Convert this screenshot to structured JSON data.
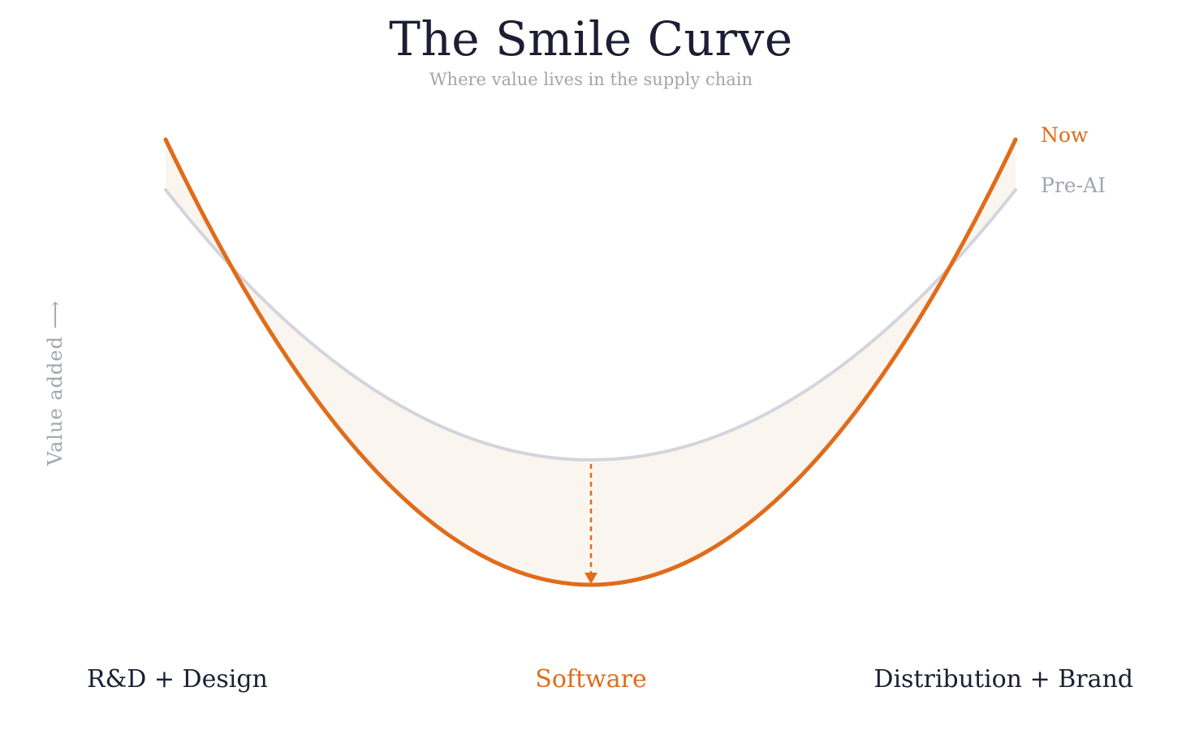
{
  "title": "The Smile Curve",
  "subtitle": "Where value lives in the supply chain",
  "y_axis_label": "Value added ⟶",
  "legend": {
    "now": "Now",
    "pre_ai": "Pre-AI"
  },
  "stages": {
    "left": "R&D + Design",
    "middle": "Software",
    "right": "Distribution + Brand"
  },
  "colors": {
    "now": "#e06c1b",
    "pre_ai": "#d4d5dc",
    "gap_fill": "#fbf5f0",
    "title": "#1c1e33",
    "muted": "#a3a5ad"
  }
}
